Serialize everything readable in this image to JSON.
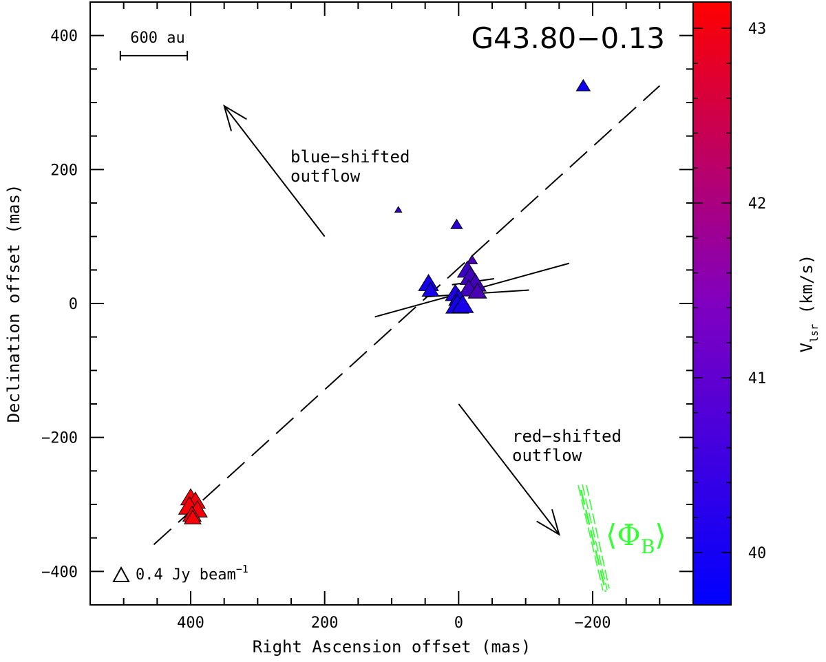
{
  "chart_data": {
    "type": "scatter",
    "title": "G43.80−0.13",
    "xlabel": "Right Ascension offset (mas)",
    "ylabel": "Declination offset (mas)",
    "xlim": [
      550,
      -350
    ],
    "ylim": [
      -450,
      450
    ],
    "xticks": [
      400,
      200,
      0,
      -200
    ],
    "xtick_labels": [
      "400",
      "200",
      "0",
      "−200"
    ],
    "yticks": [
      400,
      200,
      0,
      -200,
      -400
    ],
    "ytick_labels": [
      "400",
      "200",
      "0",
      "−200",
      "−400"
    ],
    "colorbar": {
      "label_main": "V",
      "label_sub": "lsr",
      "label_unit": " (km/s)",
      "min": 39.7,
      "max": 43.15,
      "ticks": [
        40,
        41,
        42,
        43
      ],
      "tick_labels": [
        "40",
        "41",
        "42",
        "43"
      ],
      "color_low": "#0000ff",
      "color_high": "#ff0000"
    },
    "maser_points": [
      {
        "x": -186,
        "y": 325,
        "v": 39.9,
        "s": 0.9
      },
      {
        "x": 90,
        "y": 140,
        "v": 40.4,
        "s": 0.45
      },
      {
        "x": 3,
        "y": 118,
        "v": 40.3,
        "s": 0.75
      },
      {
        "x": -20,
        "y": 65,
        "v": 40.7,
        "s": 0.7
      },
      {
        "x": -13,
        "y": 50,
        "v": 40.5,
        "s": 1.3
      },
      {
        "x": -18,
        "y": 40,
        "v": 40.6,
        "s": 1.4
      },
      {
        "x": -25,
        "y": 30,
        "v": 40.6,
        "s": 1.4
      },
      {
        "x": -15,
        "y": 22,
        "v": 40.6,
        "s": 1.3
      },
      {
        "x": -28,
        "y": 18,
        "v": 40.7,
        "s": 1.2
      },
      {
        "x": 45,
        "y": 30,
        "v": 40.0,
        "s": 1.3
      },
      {
        "x": 42,
        "y": 20,
        "v": 40.0,
        "s": 1.1
      },
      {
        "x": 5,
        "y": 15,
        "v": 40.1,
        "s": 1.3
      },
      {
        "x": 0,
        "y": 8,
        "v": 40.0,
        "s": 1.3
      },
      {
        "x": 2,
        "y": -2,
        "v": 40.0,
        "s": 1.5
      },
      {
        "x": -6,
        "y": -2,
        "v": 40.0,
        "s": 1.4
      },
      {
        "x": 400,
        "y": -290,
        "v": 43.05,
        "s": 1.3
      },
      {
        "x": 393,
        "y": -295,
        "v": 43.0,
        "s": 1.3
      },
      {
        "x": 402,
        "y": -303,
        "v": 43.05,
        "s": 1.4
      },
      {
        "x": 390,
        "y": -308,
        "v": 43.0,
        "s": 1.3
      },
      {
        "x": 398,
        "y": -315,
        "v": 43.0,
        "s": 1.2
      },
      {
        "x": 397,
        "y": -320,
        "v": 43.05,
        "s": 1.1
      }
    ],
    "polarization_vectors": [
      {
        "x1": 125,
        "y1": -20,
        "x2": -165,
        "y2": 60
      },
      {
        "x1": 50,
        "y1": 10,
        "x2": -105,
        "y2": 20
      },
      {
        "x1": 10,
        "y1": 28,
        "x2": -53,
        "y2": 37
      }
    ],
    "fit_line": {
      "x1": 455,
      "y1": -360,
      "x2": -300,
      "y2": 325
    },
    "blue_outflow": {
      "x1": 200,
      "y1": 100,
      "x2": 350,
      "y2": 295,
      "label_line1": "blue−shifted",
      "label_line2": "outflow"
    },
    "red_outflow": {
      "x1": 0,
      "y1": -150,
      "x2": -150,
      "y2": -345,
      "label_line1": "red−shifted",
      "label_line2": "outflow"
    },
    "scale_bar": {
      "x1": 505,
      "x2": 405,
      "y": 370,
      "label": "600 au"
    },
    "intensity_legend": {
      "label": "0.4 Jy beam",
      "exponent": "−1"
    },
    "magnetic_field": {
      "label_main": "⟨Φ",
      "label_sub": "B",
      "label_close": "⟩",
      "color": "#33ff33"
    }
  }
}
